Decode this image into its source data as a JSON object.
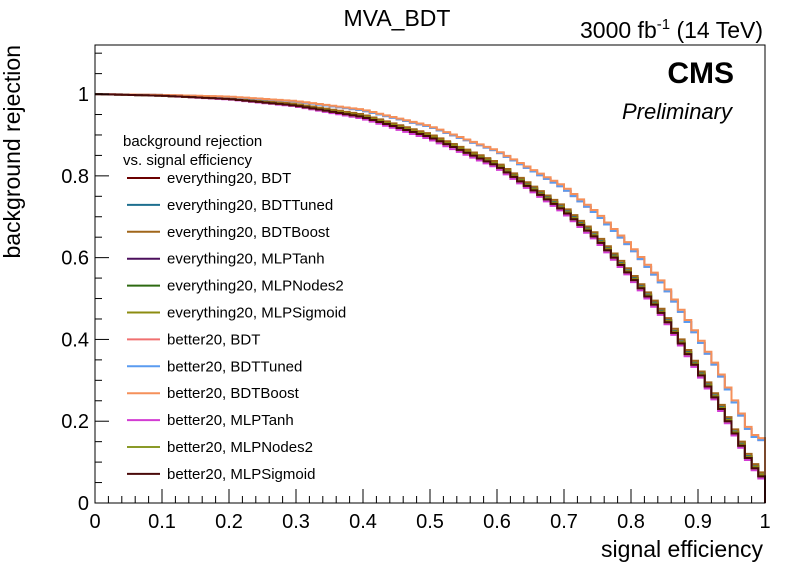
{
  "chart_data": {
    "type": "line",
    "title": "MVA_BDT",
    "lumi_label": "3000 fb",
    "lumi_exponent": "-1",
    "energy_label": " (14 TeV)",
    "experiment": "CMS",
    "status": "Preliminary",
    "xlabel": "signal efficiency",
    "ylabel": "background rejection",
    "xlim": [
      0,
      1
    ],
    "ylim": [
      0,
      1.12
    ],
    "xticks": [
      "0",
      "0.1",
      "0.2",
      "0.3",
      "0.4",
      "0.5",
      "0.6",
      "0.7",
      "0.8",
      "0.9",
      "1"
    ],
    "yticks": [
      "0",
      "0.2",
      "0.4",
      "0.6",
      "0.8",
      "1"
    ],
    "legend_title_line1": "background rejection",
    "legend_title_line2": "vs. signal efficiency",
    "legend_position": "left",
    "x": [
      0,
      0.1,
      0.2,
      0.3,
      0.4,
      0.5,
      0.6,
      0.7,
      0.75,
      0.8,
      0.85,
      0.9,
      0.93,
      0.96,
      0.98,
      1.0
    ],
    "series": [
      {
        "name": "everything20, BDT",
        "color": "#6b0000",
        "values": [
          1.0,
          0.997,
          0.99,
          0.975,
          0.948,
          0.9,
          0.83,
          0.72,
          0.65,
          0.56,
          0.46,
          0.33,
          0.25,
          0.16,
          0.1,
          0.06
        ]
      },
      {
        "name": "everything20, BDTTuned",
        "color": "#1e6f8f",
        "values": [
          1.0,
          0.997,
          0.99,
          0.975,
          0.948,
          0.9,
          0.83,
          0.72,
          0.65,
          0.56,
          0.46,
          0.33,
          0.25,
          0.16,
          0.1,
          0.06
        ]
      },
      {
        "name": "everything20, BDTBoost",
        "color": "#a0661a",
        "values": [
          1.0,
          0.997,
          0.99,
          0.976,
          0.95,
          0.902,
          0.833,
          0.725,
          0.655,
          0.565,
          0.465,
          0.335,
          0.255,
          0.165,
          0.105,
          0.065
        ]
      },
      {
        "name": "everything20, MLPTanh",
        "color": "#4b0f5c",
        "values": [
          1.0,
          0.996,
          0.988,
          0.972,
          0.944,
          0.895,
          0.825,
          0.715,
          0.645,
          0.555,
          0.455,
          0.325,
          0.245,
          0.155,
          0.095,
          0.055
        ]
      },
      {
        "name": "everything20, MLPNodes2",
        "color": "#2e6a12",
        "values": [
          1.0,
          0.996,
          0.988,
          0.972,
          0.944,
          0.896,
          0.826,
          0.716,
          0.646,
          0.556,
          0.456,
          0.326,
          0.246,
          0.156,
          0.096,
          0.057
        ]
      },
      {
        "name": "everything20, MLPSigmoid",
        "color": "#8c8c10",
        "values": [
          1.0,
          0.996,
          0.989,
          0.973,
          0.946,
          0.898,
          0.828,
          0.718,
          0.648,
          0.558,
          0.458,
          0.328,
          0.248,
          0.158,
          0.098,
          0.06
        ]
      },
      {
        "name": "better20, BDT",
        "color": "#f07070",
        "values": [
          1.0,
          0.998,
          0.993,
          0.982,
          0.96,
          0.92,
          0.86,
          0.77,
          0.705,
          0.625,
          0.53,
          0.405,
          0.325,
          0.23,
          0.165,
          0.15
        ]
      },
      {
        "name": "better20, BDTTuned",
        "color": "#5a9bf0",
        "values": [
          1.0,
          0.998,
          0.993,
          0.982,
          0.96,
          0.92,
          0.86,
          0.77,
          0.705,
          0.625,
          0.53,
          0.405,
          0.325,
          0.23,
          0.165,
          0.15
        ]
      },
      {
        "name": "better20, BDTBoost",
        "color": "#f5905a",
        "values": [
          1.0,
          0.998,
          0.994,
          0.983,
          0.962,
          0.922,
          0.862,
          0.775,
          0.71,
          0.63,
          0.535,
          0.41,
          0.33,
          0.235,
          0.17,
          0.155
        ]
      },
      {
        "name": "better20, MLPTanh",
        "color": "#d23cd2",
        "values": [
          1.0,
          0.996,
          0.987,
          0.97,
          0.94,
          0.89,
          0.82,
          0.71,
          0.64,
          0.55,
          0.45,
          0.32,
          0.24,
          0.15,
          0.09,
          0.05
        ]
      },
      {
        "name": "better20, MLPNodes2",
        "color": "#8a9a28",
        "values": [
          1.0,
          0.996,
          0.988,
          0.972,
          0.944,
          0.895,
          0.825,
          0.715,
          0.645,
          0.555,
          0.455,
          0.325,
          0.245,
          0.155,
          0.095,
          0.055
        ]
      },
      {
        "name": "better20, MLPSigmoid",
        "color": "#4a0a0a",
        "values": [
          1.0,
          0.996,
          0.988,
          0.972,
          0.944,
          0.895,
          0.825,
          0.715,
          0.645,
          0.555,
          0.455,
          0.325,
          0.245,
          0.155,
          0.095,
          0.055
        ]
      }
    ]
  }
}
